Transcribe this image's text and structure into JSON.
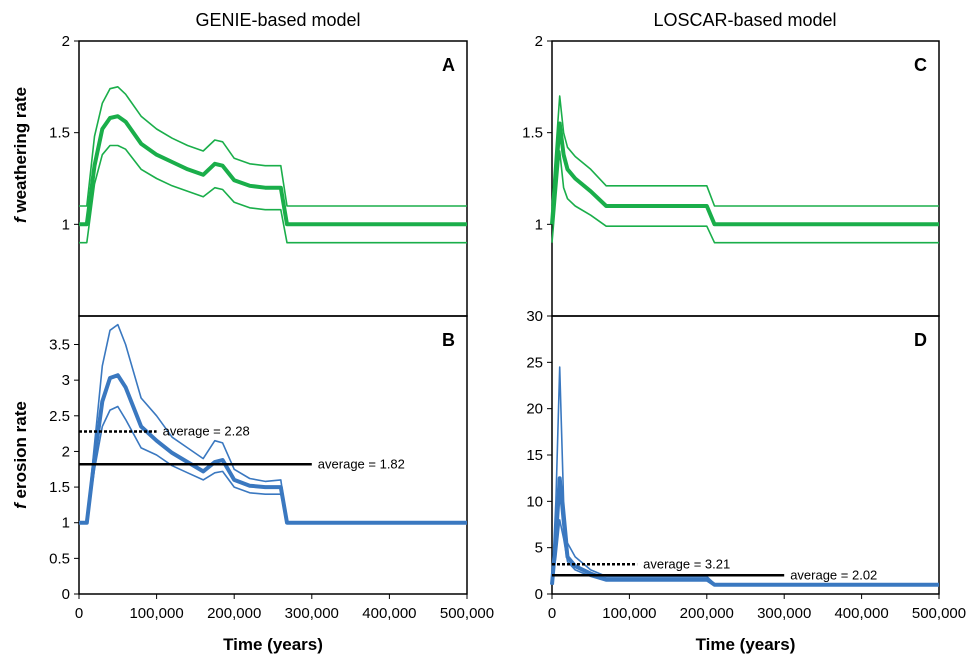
{
  "headers": {
    "left": "GENIE-based model",
    "right": "LOSCAR-based model"
  },
  "ylabels": {
    "weathering_f": "f",
    "weathering_rest": " weathering rate",
    "erosion_f": "f",
    "erosion_rest": " erosion rate"
  },
  "colors": {
    "weathering": "#1aae4a",
    "erosion": "#3a78c0",
    "average": "#000000"
  },
  "chart_data": [
    {
      "type": "line",
      "panel": "A",
      "ylim": [
        0.5,
        2
      ],
      "yticks": [
        1,
        1.5,
        2
      ],
      "xlim": [
        0,
        500000
      ],
      "xticks": [],
      "series": [
        {
          "role": "central",
          "x": [
            0,
            5000,
            10000,
            20000,
            30000,
            40000,
            50000,
            60000,
            80000,
            100000,
            120000,
            140000,
            160000,
            175000,
            185000,
            200000,
            220000,
            240000,
            260000,
            268000,
            500000
          ],
          "y": [
            1,
            1,
            1,
            1.32,
            1.52,
            1.58,
            1.59,
            1.56,
            1.44,
            1.38,
            1.34,
            1.3,
            1.27,
            1.33,
            1.32,
            1.24,
            1.21,
            1.2,
            1.2,
            1.0,
            1.0
          ]
        },
        {
          "role": "upper",
          "x": [
            0,
            5000,
            10000,
            20000,
            30000,
            40000,
            50000,
            60000,
            80000,
            100000,
            120000,
            140000,
            160000,
            175000,
            185000,
            200000,
            220000,
            240000,
            260000,
            268000,
            500000
          ],
          "y": [
            1.1,
            1.1,
            1.1,
            1.48,
            1.66,
            1.74,
            1.75,
            1.71,
            1.59,
            1.52,
            1.47,
            1.43,
            1.4,
            1.46,
            1.45,
            1.36,
            1.33,
            1.32,
            1.32,
            1.1,
            1.1
          ]
        },
        {
          "role": "lower",
          "x": [
            0,
            5000,
            10000,
            20000,
            30000,
            40000,
            50000,
            60000,
            80000,
            100000,
            120000,
            140000,
            160000,
            175000,
            185000,
            200000,
            220000,
            240000,
            260000,
            268000,
            500000
          ],
          "y": [
            0.9,
            0.9,
            0.9,
            1.22,
            1.38,
            1.43,
            1.43,
            1.41,
            1.3,
            1.25,
            1.21,
            1.18,
            1.15,
            1.2,
            1.19,
            1.12,
            1.09,
            1.08,
            1.08,
            0.9,
            0.9
          ]
        }
      ]
    },
    {
      "type": "line",
      "panel": "B",
      "ylim": [
        0,
        3.9
      ],
      "yticks": [
        0,
        0.5,
        1,
        1.5,
        2,
        2.5,
        3,
        3.5
      ],
      "xlim": [
        0,
        500000
      ],
      "xticks": [
        "0",
        "100,000",
        "200,000",
        "300,000",
        "400,000",
        "500,000"
      ],
      "xlabel": "Time (years)",
      "series": [
        {
          "role": "central",
          "x": [
            0,
            10000,
            20000,
            30000,
            40000,
            50000,
            60000,
            80000,
            100000,
            120000,
            140000,
            160000,
            175000,
            185000,
            200000,
            220000,
            240000,
            260000,
            268000,
            500000
          ],
          "y": [
            1,
            1,
            1.9,
            2.7,
            3.03,
            3.07,
            2.9,
            2.35,
            2.15,
            1.98,
            1.85,
            1.72,
            1.85,
            1.88,
            1.6,
            1.52,
            1.5,
            1.5,
            1.0,
            1.0
          ]
        },
        {
          "role": "upper",
          "x": [
            0,
            10000,
            20000,
            30000,
            40000,
            50000,
            60000,
            80000,
            100000,
            120000,
            140000,
            160000,
            175000,
            185000,
            200000,
            220000,
            240000,
            260000,
            268000,
            500000
          ],
          "y": [
            1,
            1,
            2.1,
            3.2,
            3.7,
            3.78,
            3.5,
            2.75,
            2.5,
            2.2,
            2.05,
            1.9,
            2.15,
            2.12,
            1.75,
            1.62,
            1.58,
            1.6,
            1.0,
            1.0
          ]
        },
        {
          "role": "lower",
          "x": [
            0,
            10000,
            20000,
            30000,
            40000,
            50000,
            60000,
            80000,
            100000,
            120000,
            140000,
            160000,
            175000,
            185000,
            200000,
            220000,
            240000,
            260000,
            268000,
            500000
          ],
          "y": [
            1,
            1,
            1.75,
            2.35,
            2.58,
            2.63,
            2.45,
            2.05,
            1.95,
            1.8,
            1.7,
            1.6,
            1.7,
            1.72,
            1.5,
            1.42,
            1.4,
            1.4,
            1.0,
            1.0
          ]
        }
      ],
      "averages": [
        {
          "style": "dotted",
          "value": 2.28,
          "x": [
            0,
            100000
          ],
          "label": "average = 2.28"
        },
        {
          "style": "solid",
          "value": 1.82,
          "x": [
            0,
            300000
          ],
          "label": "average = 1.82"
        }
      ]
    },
    {
      "type": "line",
      "panel": "C",
      "ylim": [
        0.5,
        2
      ],
      "yticks": [
        1,
        1.5,
        2
      ],
      "xlim": [
        0,
        500000
      ],
      "xticks": [],
      "series": [
        {
          "role": "central",
          "x": [
            0,
            10000,
            15000,
            20000,
            30000,
            50000,
            70000,
            200000,
            210000,
            500000
          ],
          "y": [
            1,
            1.55,
            1.38,
            1.3,
            1.25,
            1.18,
            1.1,
            1.1,
            1.0,
            1.0
          ]
        },
        {
          "role": "upper",
          "x": [
            0,
            10000,
            15000,
            20000,
            30000,
            50000,
            70000,
            200000,
            210000,
            500000
          ],
          "y": [
            1.1,
            1.7,
            1.5,
            1.42,
            1.37,
            1.3,
            1.21,
            1.21,
            1.1,
            1.1
          ]
        },
        {
          "role": "lower",
          "x": [
            0,
            10000,
            15000,
            20000,
            30000,
            50000,
            70000,
            200000,
            210000,
            500000
          ],
          "y": [
            0.9,
            1.4,
            1.2,
            1.14,
            1.1,
            1.05,
            0.99,
            0.99,
            0.9,
            0.9
          ]
        }
      ]
    },
    {
      "type": "line",
      "panel": "D",
      "ylim": [
        0,
        30
      ],
      "yticks": [
        0,
        5,
        10,
        15,
        20,
        25,
        30
      ],
      "xlim": [
        0,
        500000
      ],
      "xticks": [
        "0",
        "100,000",
        "200,000",
        "300,000",
        "400,000",
        "500,000"
      ],
      "xlabel": "Time (years)",
      "series": [
        {
          "role": "central",
          "x": [
            0,
            5000,
            10000,
            15000,
            20000,
            30000,
            50000,
            70000,
            200000,
            210000,
            500000
          ],
          "y": [
            1,
            6,
            12.5,
            8,
            4,
            3,
            2.2,
            1.6,
            1.6,
            1.0,
            1.0
          ]
        },
        {
          "role": "upper",
          "x": [
            0,
            5000,
            10000,
            15000,
            20000,
            30000,
            50000,
            70000,
            200000,
            210000,
            500000
          ],
          "y": [
            1,
            10,
            24.5,
            10,
            5.5,
            4,
            2.6,
            1.9,
            1.9,
            1.1,
            1.1
          ]
        },
        {
          "role": "lower",
          "x": [
            0,
            5000,
            10000,
            15000,
            20000,
            30000,
            50000,
            70000,
            200000,
            210000,
            500000
          ],
          "y": [
            1,
            4,
            8,
            6,
            3.5,
            2.6,
            1.9,
            1.4,
            1.4,
            0.9,
            0.9
          ]
        }
      ],
      "averages": [
        {
          "style": "dotted",
          "value": 3.21,
          "x": [
            0,
            110000
          ],
          "label": "average = 3.21"
        },
        {
          "style": "solid",
          "value": 2.02,
          "x": [
            0,
            300000
          ],
          "label": "average = 2.02"
        }
      ]
    }
  ]
}
